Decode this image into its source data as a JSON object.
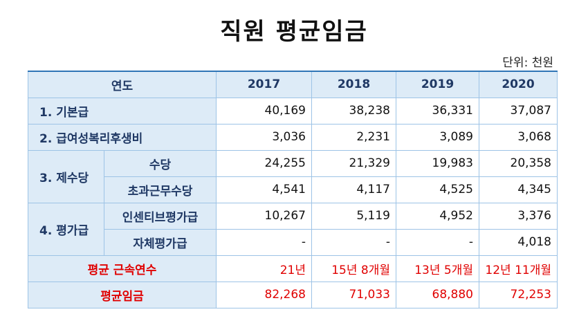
{
  "title": "직원 평균임금",
  "unit": "단위: 천원",
  "header": {
    "label": "연도",
    "years": [
      "2017",
      "2018",
      "2019",
      "2020"
    ]
  },
  "rows": {
    "base_pay": {
      "label": "1. 기본급",
      "values": [
        "40,169",
        "38,238",
        "36,331",
        "37,087"
      ]
    },
    "welfare": {
      "label": "2. 급여성복리후생비",
      "values": [
        "3,036",
        "2,231",
        "3,089",
        "3,068"
      ]
    },
    "allowances": {
      "label": "3. 제수당",
      "allowance": {
        "label": "수당",
        "values": [
          "24,255",
          "21,329",
          "19,983",
          "20,358"
        ]
      },
      "overtime": {
        "label": "초과근무수당",
        "values": [
          "4,541",
          "4,117",
          "4,525",
          "4,345"
        ]
      }
    },
    "evaluation": {
      "label": "4. 평가급",
      "incentive": {
        "label": "인센티브평가급",
        "values": [
          "10,267",
          "5,119",
          "4,952",
          "3,376"
        ]
      },
      "self": {
        "label": "자체평가급",
        "values": [
          "-",
          "-",
          "-",
          "4,018"
        ]
      }
    },
    "tenure": {
      "label": "평균 근속연수",
      "values": [
        "21년",
        "15년 8개월",
        "13년 5개월",
        "12년 11개월"
      ]
    },
    "avg_wage": {
      "label": "평균임금",
      "values": [
        "82,268",
        "71,033",
        "68,880",
        "72,253"
      ]
    }
  },
  "colors": {
    "header_bg": "#ddebf7",
    "header_text": "#1f3864",
    "border": "#9dc3e6",
    "highlight_text": "#e00000"
  }
}
